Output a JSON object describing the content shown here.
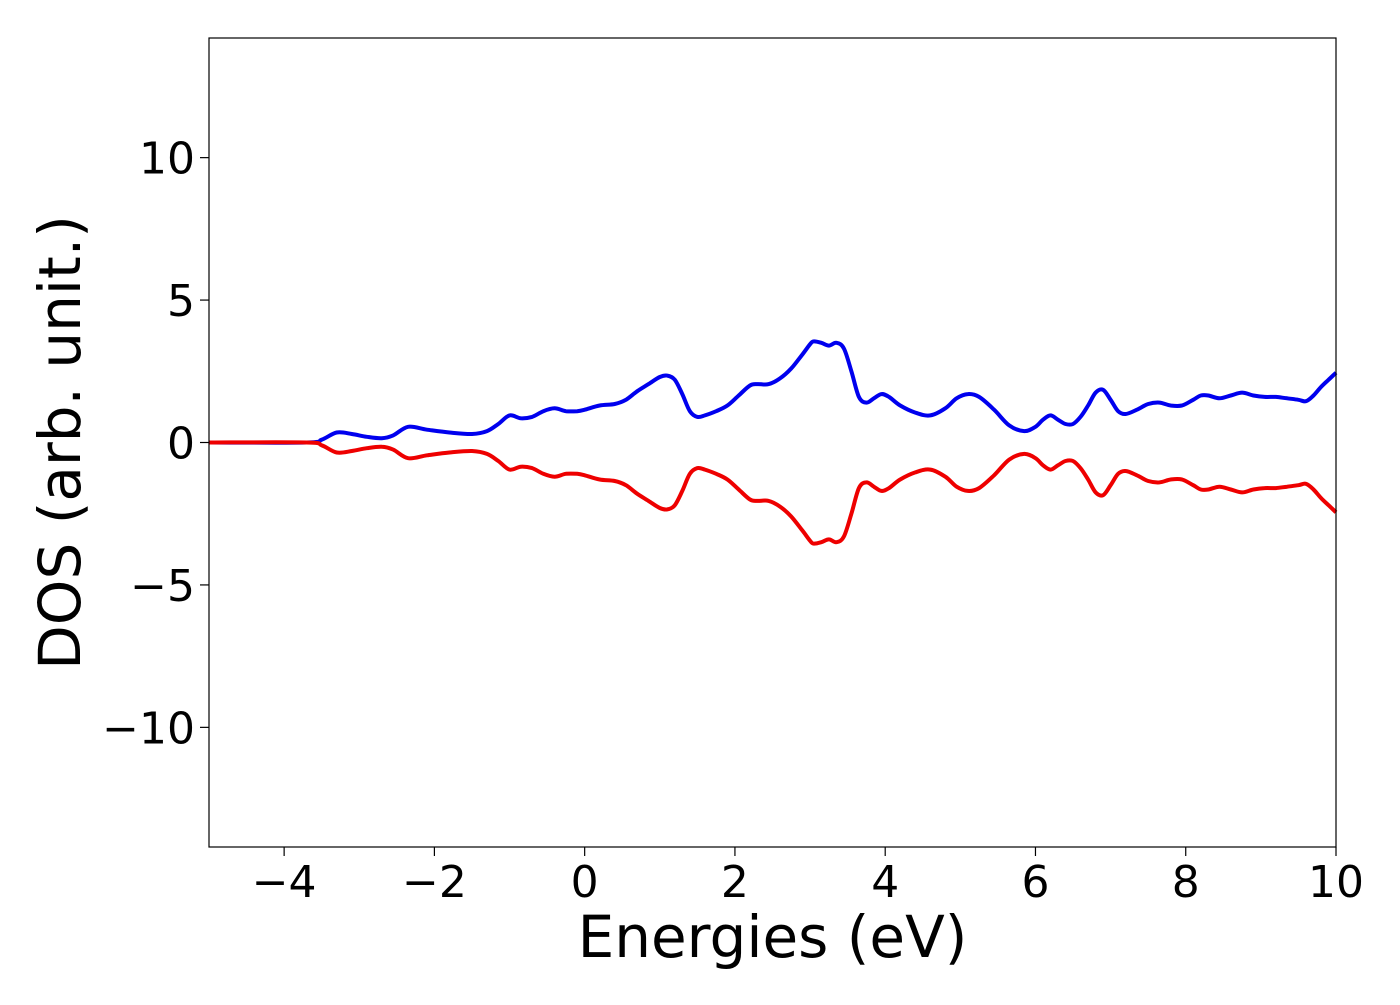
{
  "chart_data": {
    "type": "line",
    "title": "",
    "xlabel": "Energies (eV)",
    "ylabel": "DOS (arb. unit.)",
    "xlim": [
      -5,
      10
    ],
    "ylim": [
      -14.2,
      14.2
    ],
    "xticks": [
      -4,
      -2,
      0,
      2,
      4,
      6,
      8,
      10
    ],
    "xtick_labels": [
      "−4",
      "−2",
      "0",
      "2",
      "4",
      "6",
      "8",
      "10"
    ],
    "yticks": [
      -10,
      -5,
      0,
      5,
      10
    ],
    "ytick_labels": [
      "−10",
      "−5",
      "0",
      "5",
      "10"
    ],
    "grid": false,
    "legend": "none",
    "series": [
      {
        "color": "#0000ee",
        "x": [
          -5.0,
          -3.7,
          -3.5,
          -3.3,
          -3.1,
          -2.9,
          -2.7,
          -2.55,
          -2.35,
          -2.1,
          -1.8,
          -1.5,
          -1.3,
          -1.15,
          -1.0,
          -0.85,
          -0.7,
          -0.55,
          -0.4,
          -0.25,
          -0.1,
          0.0,
          0.2,
          0.4,
          0.55,
          0.7,
          0.85,
          1.0,
          1.1,
          1.2,
          1.3,
          1.4,
          1.5,
          1.6,
          1.75,
          1.9,
          2.05,
          2.2,
          2.3,
          2.45,
          2.6,
          2.75,
          2.9,
          3.0,
          3.05,
          3.15,
          3.25,
          3.35,
          3.45,
          3.55,
          3.65,
          3.75,
          3.85,
          3.95,
          4.05,
          4.2,
          4.4,
          4.6,
          4.8,
          4.95,
          5.1,
          5.25,
          5.45,
          5.65,
          5.85,
          6.0,
          6.1,
          6.2,
          6.3,
          6.4,
          6.5,
          6.6,
          6.7,
          6.8,
          6.9,
          7.0,
          7.1,
          7.2,
          7.35,
          7.5,
          7.65,
          7.8,
          7.95,
          8.1,
          8.2,
          8.3,
          8.45,
          8.6,
          8.75,
          8.9,
          9.05,
          9.2,
          9.35,
          9.5,
          9.6,
          9.7,
          9.8,
          9.9,
          10.0
        ],
        "y": [
          0.0,
          0.0,
          0.1,
          0.35,
          0.3,
          0.2,
          0.15,
          0.25,
          0.55,
          0.45,
          0.35,
          0.3,
          0.4,
          0.65,
          0.95,
          0.85,
          0.9,
          1.1,
          1.2,
          1.1,
          1.1,
          1.15,
          1.3,
          1.35,
          1.5,
          1.8,
          2.05,
          2.3,
          2.35,
          2.2,
          1.7,
          1.1,
          0.9,
          0.95,
          1.1,
          1.3,
          1.65,
          2.0,
          2.05,
          2.05,
          2.25,
          2.6,
          3.1,
          3.45,
          3.55,
          3.5,
          3.4,
          3.5,
          3.3,
          2.5,
          1.6,
          1.4,
          1.55,
          1.7,
          1.6,
          1.3,
          1.05,
          0.95,
          1.2,
          1.55,
          1.7,
          1.6,
          1.15,
          0.6,
          0.4,
          0.55,
          0.8,
          0.95,
          0.8,
          0.65,
          0.65,
          0.9,
          1.3,
          1.75,
          1.85,
          1.5,
          1.1,
          1.0,
          1.15,
          1.35,
          1.4,
          1.3,
          1.3,
          1.5,
          1.65,
          1.65,
          1.55,
          1.65,
          1.75,
          1.65,
          1.6,
          1.6,
          1.55,
          1.5,
          1.45,
          1.65,
          1.95,
          2.2,
          2.45
        ]
      },
      {
        "color": "#ee0000",
        "x": [
          -5.0,
          -3.7,
          -3.5,
          -3.3,
          -3.1,
          -2.9,
          -2.7,
          -2.55,
          -2.35,
          -2.1,
          -1.8,
          -1.5,
          -1.3,
          -1.15,
          -1.0,
          -0.85,
          -0.7,
          -0.55,
          -0.4,
          -0.25,
          -0.1,
          0.0,
          0.2,
          0.4,
          0.55,
          0.7,
          0.85,
          1.0,
          1.1,
          1.2,
          1.3,
          1.4,
          1.5,
          1.6,
          1.75,
          1.9,
          2.05,
          2.2,
          2.3,
          2.45,
          2.6,
          2.75,
          2.9,
          3.0,
          3.05,
          3.15,
          3.25,
          3.35,
          3.45,
          3.55,
          3.65,
          3.75,
          3.85,
          3.95,
          4.05,
          4.2,
          4.4,
          4.6,
          4.8,
          4.95,
          5.1,
          5.25,
          5.45,
          5.65,
          5.85,
          6.0,
          6.1,
          6.2,
          6.3,
          6.4,
          6.5,
          6.6,
          6.7,
          6.8,
          6.9,
          7.0,
          7.1,
          7.2,
          7.35,
          7.5,
          7.65,
          7.8,
          7.95,
          8.1,
          8.2,
          8.3,
          8.45,
          8.6,
          8.75,
          8.9,
          9.05,
          9.2,
          9.35,
          9.5,
          9.6,
          9.7,
          9.8,
          9.9,
          10.0
        ],
        "y": [
          0.0,
          0.0,
          -0.1,
          -0.35,
          -0.3,
          -0.2,
          -0.15,
          -0.25,
          -0.55,
          -0.45,
          -0.35,
          -0.3,
          -0.4,
          -0.65,
          -0.95,
          -0.85,
          -0.9,
          -1.1,
          -1.2,
          -1.1,
          -1.1,
          -1.15,
          -1.3,
          -1.35,
          -1.5,
          -1.8,
          -2.05,
          -2.3,
          -2.35,
          -2.2,
          -1.7,
          -1.1,
          -0.9,
          -0.95,
          -1.1,
          -1.3,
          -1.65,
          -2.0,
          -2.05,
          -2.05,
          -2.25,
          -2.6,
          -3.1,
          -3.45,
          -3.55,
          -3.5,
          -3.4,
          -3.5,
          -3.3,
          -2.5,
          -1.6,
          -1.4,
          -1.55,
          -1.7,
          -1.6,
          -1.3,
          -1.05,
          -0.95,
          -1.2,
          -1.55,
          -1.7,
          -1.6,
          -1.15,
          -0.6,
          -0.4,
          -0.55,
          -0.8,
          -0.95,
          -0.8,
          -0.65,
          -0.65,
          -0.9,
          -1.3,
          -1.75,
          -1.85,
          -1.5,
          -1.1,
          -1.0,
          -1.15,
          -1.35,
          -1.4,
          -1.3,
          -1.3,
          -1.5,
          -1.65,
          -1.65,
          -1.55,
          -1.65,
          -1.75,
          -1.65,
          -1.6,
          -1.6,
          -1.55,
          -1.5,
          -1.45,
          -1.65,
          -1.95,
          -2.2,
          -2.45
        ]
      }
    ]
  }
}
